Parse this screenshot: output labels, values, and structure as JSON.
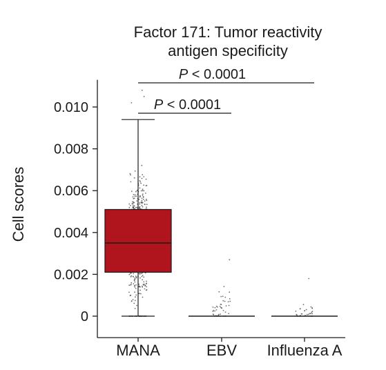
{
  "chart_data": {
    "type": "box",
    "title": [
      "Factor 171: Tumor reactivity",
      "antigen specificity"
    ],
    "xlabel": "",
    "ylabel": "Cell scores",
    "ylim": [
      -0.0005,
      0.0113
    ],
    "yticks": [
      0,
      0.002,
      0.004,
      0.006,
      0.008,
      0.01
    ],
    "ytick_labels": [
      "0",
      "0.002",
      "0.004",
      "0.006",
      "0.008",
      "0.010"
    ],
    "categories": [
      "MANA",
      "EBV",
      "Influenza A"
    ],
    "colors": {
      "box": "#b0141c",
      "line": "#1a1a1a",
      "points": "#555555"
    },
    "boxes": [
      {
        "category": "MANA",
        "min": 0,
        "q1": 0.0021,
        "median": 0.0035,
        "q3": 0.0051,
        "max": 0.0094
      },
      {
        "category": "EBV",
        "min": 0,
        "q1": 0,
        "median": 0,
        "q3": 0,
        "max": 0
      },
      {
        "category": "Influenza A",
        "min": 0,
        "q1": 0,
        "median": 0,
        "q3": 0,
        "max": 0
      }
    ],
    "points_summary": [
      {
        "category": "MANA",
        "approx_count": 700,
        "range": [
          0,
          0.0108
        ]
      },
      {
        "category": "EBV",
        "approx_count": 45,
        "range": [
          0,
          0.0027
        ]
      },
      {
        "category": "Influenza A",
        "approx_count": 35,
        "range": [
          0,
          0.0018
        ]
      }
    ],
    "significance": [
      {
        "from": "MANA",
        "to": "EBV",
        "label_p": "P",
        "label_rest": " < 0.0001"
      },
      {
        "from": "MANA",
        "to": "Influenza A",
        "label_p": "P",
        "label_rest": " < 0.0001"
      }
    ]
  }
}
